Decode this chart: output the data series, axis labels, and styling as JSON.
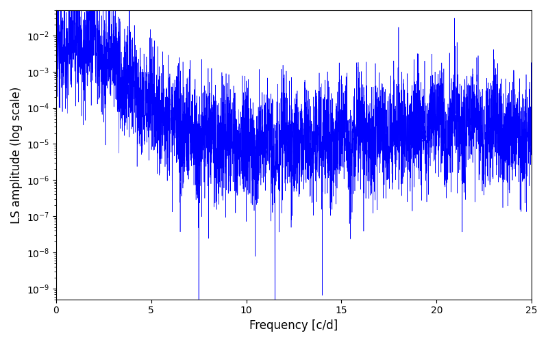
{
  "title": "",
  "xlabel": "Frequency [c/d]",
  "ylabel": "LS amplitude (log scale)",
  "xlim": [
    0,
    25
  ],
  "ylim": [
    5e-10,
    0.05
  ],
  "line_color": "#0000FF",
  "line_width": 0.4,
  "figsize": [
    8.0,
    5.0
  ],
  "dpi": 100,
  "seed": 12345,
  "n_points": 5000,
  "freq_max": 25.0,
  "background_color": "#ffffff"
}
